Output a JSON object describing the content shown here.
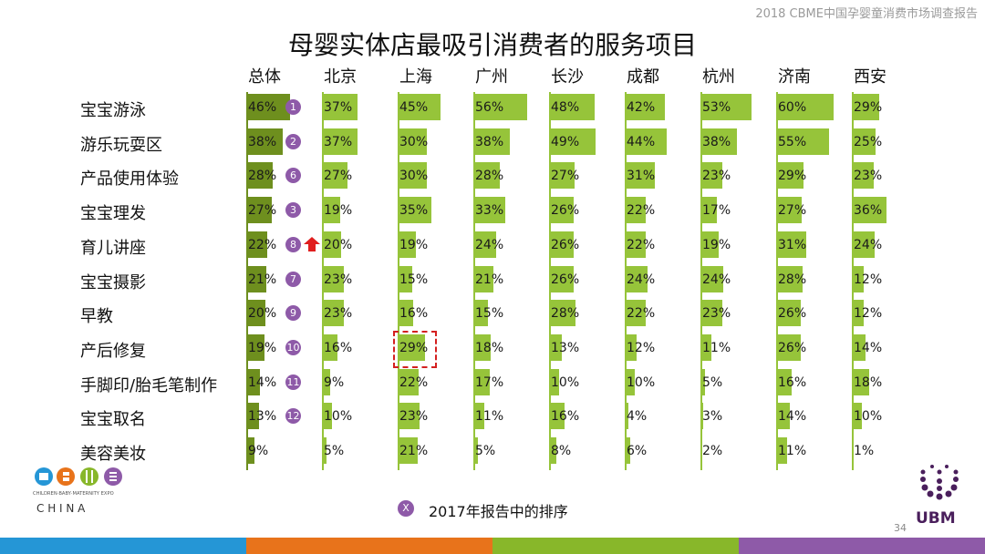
{
  "header": {
    "report_title": "2018 CBME中国孕婴童消费市场调查报告"
  },
  "chart_data": {
    "type": "bar",
    "title": "母婴实体店最吸引消费者的服务项目",
    "columns": [
      "总体",
      "北京",
      "上海",
      "广州",
      "长沙",
      "成都",
      "杭州",
      "济南",
      "西安"
    ],
    "categories": [
      "宝宝游泳",
      "游乐玩耍区",
      "产品使用体验",
      "宝宝理发",
      "育儿讲座",
      "宝宝摄影",
      "早教",
      "产后修复",
      "手脚印/胎毛笔制作",
      "宝宝取名",
      "美容美妆"
    ],
    "series": [
      {
        "name": "总体",
        "values": [
          46,
          38,
          28,
          27,
          22,
          21,
          20,
          19,
          14,
          13,
          9
        ]
      },
      {
        "name": "北京",
        "values": [
          37,
          37,
          27,
          19,
          20,
          23,
          23,
          16,
          9,
          10,
          5
        ]
      },
      {
        "name": "上海",
        "values": [
          45,
          30,
          30,
          35,
          19,
          15,
          16,
          29,
          22,
          23,
          21
        ]
      },
      {
        "name": "广州",
        "values": [
          56,
          38,
          28,
          33,
          24,
          21,
          15,
          18,
          17,
          11,
          5
        ]
      },
      {
        "name": "长沙",
        "values": [
          48,
          49,
          27,
          26,
          26,
          26,
          28,
          13,
          10,
          16,
          8
        ]
      },
      {
        "name": "成都",
        "values": [
          42,
          44,
          31,
          22,
          22,
          24,
          22,
          12,
          10,
          4,
          6
        ]
      },
      {
        "name": "杭州",
        "values": [
          53,
          38,
          23,
          17,
          19,
          24,
          23,
          11,
          5,
          3,
          2
        ]
      },
      {
        "name": "济南",
        "values": [
          60,
          55,
          29,
          27,
          31,
          28,
          26,
          26,
          16,
          14,
          11
        ]
      },
      {
        "name": "西安",
        "values": [
          29,
          25,
          23,
          36,
          24,
          12,
          12,
          14,
          18,
          10,
          1
        ]
      }
    ],
    "ranks_2017": [
      "1",
      "2",
      "6",
      "3",
      "8",
      "7",
      "9",
      "10",
      "11",
      "12"
    ],
    "rank_up_category": "育儿讲座",
    "highlight": {
      "category": "产后修复",
      "column": "上海"
    },
    "colors": {
      "overall": "#6e8f1e",
      "city": "#96c43a",
      "rank": "#8e5aa8",
      "arrow": "#e01e1e",
      "highlight": "#d42020"
    }
  },
  "legend": {
    "symbol": "X",
    "text": "2017年报告中的排序"
  },
  "page_number": "34",
  "logos": {
    "left_text": "CBME",
    "left_sub": "CHILDREN·BABY·MATERNITY EXPO",
    "left_china": "C H I N A",
    "right_text": "UBM"
  },
  "footer_colors": [
    "#2596d6",
    "#e8731b",
    "#88b72a",
    "#8e5aa8"
  ]
}
